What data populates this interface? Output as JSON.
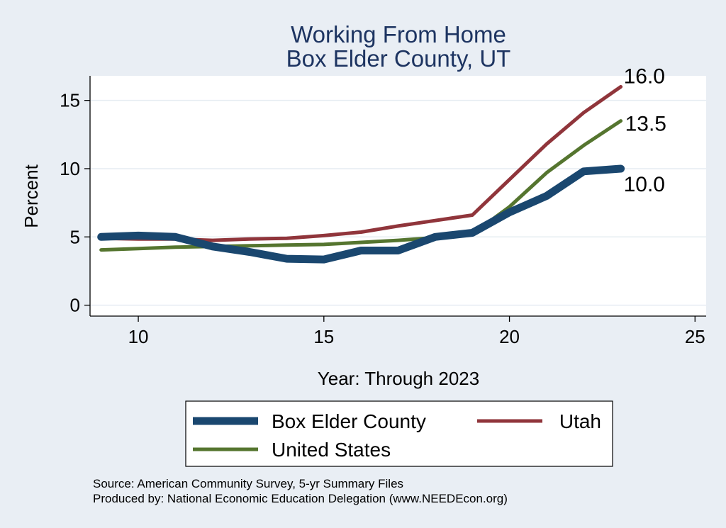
{
  "chart_data": {
    "type": "line",
    "title": [
      "Working From Home",
      "Box Elder County, UT"
    ],
    "xlabel": "Year: Through 2023",
    "ylabel": "Percent",
    "xlim": [
      8.7,
      25.3
    ],
    "ylim": [
      -0.8,
      16.8
    ],
    "xticks": [
      10,
      15,
      20,
      25
    ],
    "yticks": [
      0,
      5,
      10,
      15
    ],
    "x": [
      9,
      10,
      11,
      12,
      13,
      14,
      15,
      16,
      17,
      18,
      19,
      20,
      21,
      22,
      23
    ],
    "grid": true,
    "legend_position": "bottom",
    "series": [
      {
        "name": "Box Elder County",
        "color": "#1a476f",
        "values": [
          5.0,
          5.1,
          5.0,
          4.3,
          3.9,
          3.4,
          3.35,
          4.0,
          4.0,
          5.0,
          5.3,
          6.8,
          8.0,
          9.8,
          10.0
        ],
        "end_label": "10.0"
      },
      {
        "name": "Utah",
        "color": "#90353b",
        "values": [
          4.9,
          4.85,
          4.85,
          4.75,
          4.85,
          4.9,
          5.1,
          5.35,
          5.8,
          6.2,
          6.6,
          9.2,
          11.8,
          14.1,
          16.0
        ],
        "end_label": "16.0"
      },
      {
        "name": "United States",
        "color": "#55752f",
        "values": [
          4.05,
          4.15,
          4.25,
          4.3,
          4.35,
          4.4,
          4.45,
          4.6,
          4.75,
          4.95,
          5.2,
          7.2,
          9.7,
          11.7,
          13.5
        ],
        "end_label": "13.5"
      }
    ]
  },
  "notes": {
    "source": "Source: American Community Survey, 5-yr Summary Files",
    "produced_by": "Produced by: National Economic Education Delegation (www.NEEDEcon.org)"
  }
}
